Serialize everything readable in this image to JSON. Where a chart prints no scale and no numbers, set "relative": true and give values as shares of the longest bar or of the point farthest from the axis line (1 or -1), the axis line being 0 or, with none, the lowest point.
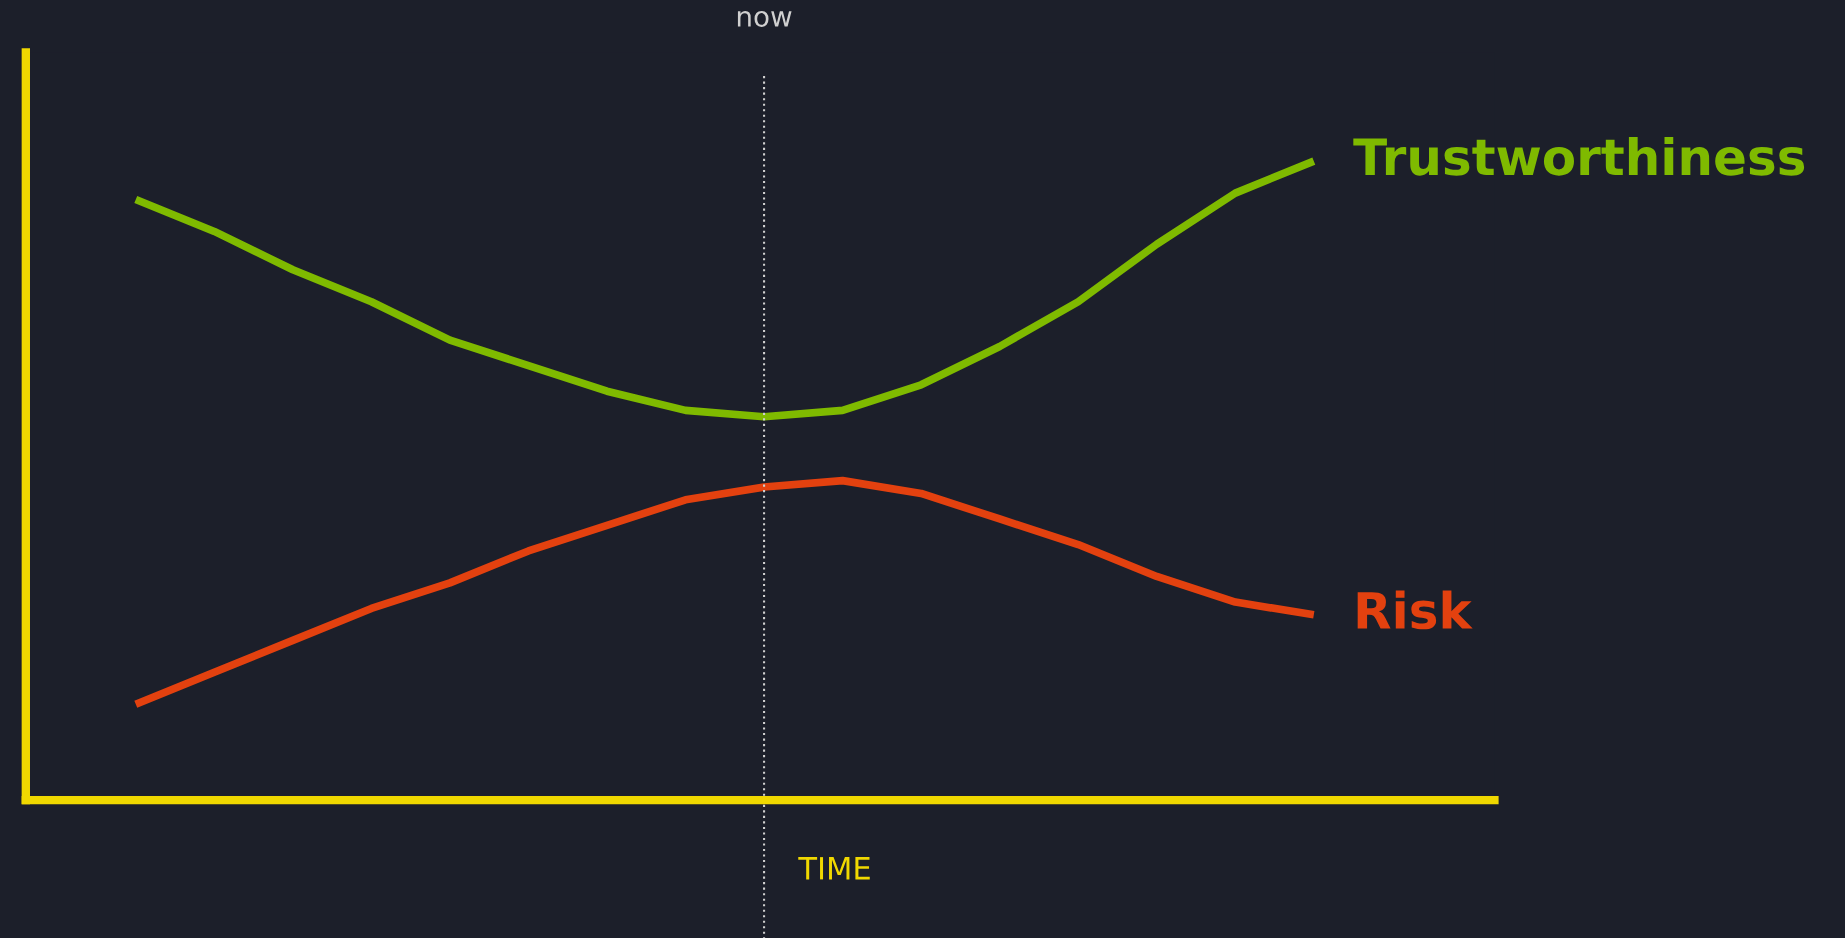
{
  "chart_data": {
    "type": "line",
    "relative": true,
    "xlabel": "TIME",
    "categories": [
      null,
      null,
      null,
      null,
      null,
      null,
      null,
      null,
      null,
      null,
      null,
      null,
      null,
      null,
      null,
      null
    ],
    "series": [
      {
        "name": "Trustworthiness",
        "color": "#7fba00",
        "values": [
          0.94,
          0.89,
          0.83,
          0.78,
          0.72,
          0.68,
          0.64,
          0.61,
          0.6,
          0.61,
          0.65,
          0.71,
          0.78,
          0.87,
          0.95,
          1
        ]
      },
      {
        "name": "Risk",
        "color": "#e3410f",
        "values": [
          0.15,
          0.2,
          0.25,
          0.3,
          0.34,
          0.39,
          0.43,
          0.47,
          0.49,
          0.5,
          0.48,
          0.44,
          0.4,
          0.35,
          0.31,
          0.29
        ]
      }
    ],
    "annotations": [
      "now"
    ],
    "legend": false,
    "marker": "none",
    "line_style": "solid"
  }
}
